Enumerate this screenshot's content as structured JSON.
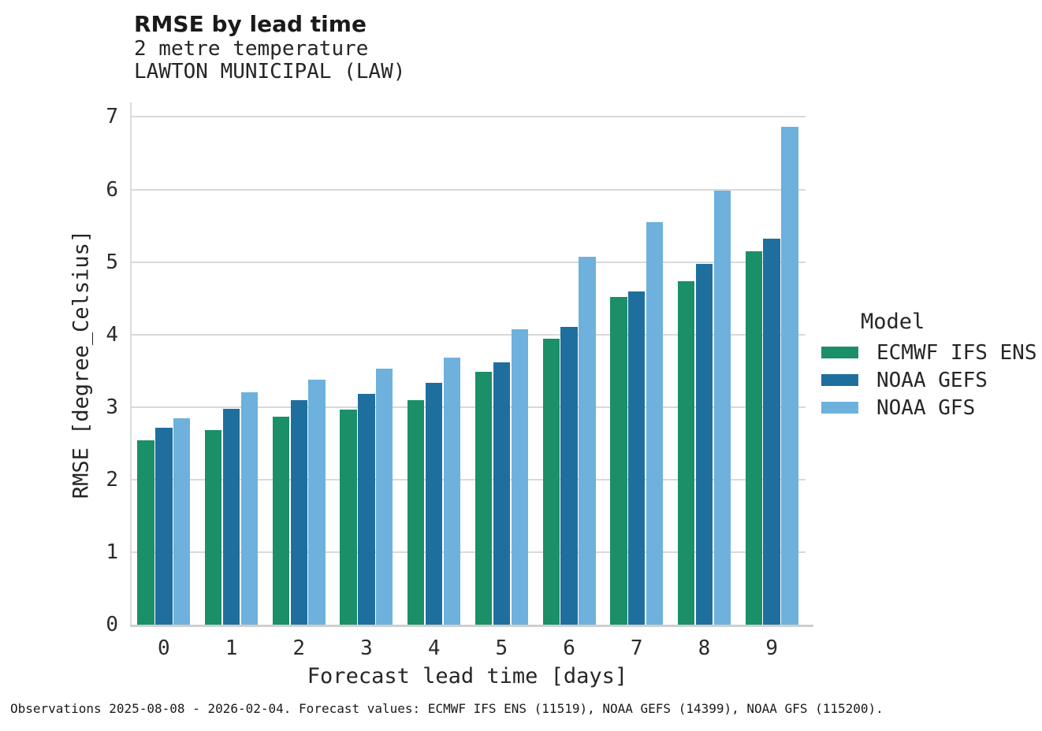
{
  "header": {
    "title": "RMSE by lead time",
    "subtitle1": "2 metre temperature",
    "subtitle2": "LAWTON MUNICIPAL (LAW)"
  },
  "chart_data": {
    "type": "bar",
    "title": "RMSE by lead time",
    "subtitle": [
      "2 metre temperature",
      "LAWTON MUNICIPAL (LAW)"
    ],
    "categories": [
      "0",
      "1",
      "2",
      "3",
      "4",
      "5",
      "6",
      "7",
      "8",
      "9"
    ],
    "series": [
      {
        "name": "ECMWF IFS ENS",
        "color": "#1a8f68",
        "values": [
          2.54,
          2.68,
          2.87,
          2.96,
          3.1,
          3.49,
          3.94,
          4.52,
          4.73,
          5.15
        ]
      },
      {
        "name": "NOAA GEFS",
        "color": "#1f6f9e",
        "values": [
          2.72,
          2.98,
          3.09,
          3.18,
          3.33,
          3.62,
          4.1,
          4.59,
          4.97,
          5.32
        ]
      },
      {
        "name": "NOAA GFS",
        "color": "#6db1dc",
        "values": [
          2.84,
          3.2,
          3.38,
          3.53,
          3.68,
          4.07,
          5.07,
          5.55,
          5.98,
          6.86
        ]
      }
    ],
    "xlabel": "Forecast lead time [days]",
    "ylabel": "RMSE [degree_Celsius]",
    "ylim": [
      0,
      7.2
    ],
    "yticks": [
      0,
      1,
      2,
      3,
      4,
      5,
      6,
      7
    ],
    "grid": "horizontal",
    "legend_title": "Model",
    "legend_position": "right"
  },
  "footer": {
    "text": "Observations 2025-08-08 - 2026-02-04. Forecast values: ECMWF IFS ENS (11519), NOAA GEFS (14399), NOAA GFS (115200)."
  },
  "colors": {
    "gridline": "#d9d9d9",
    "axis": "#cfcfcf",
    "text": "#262626"
  }
}
